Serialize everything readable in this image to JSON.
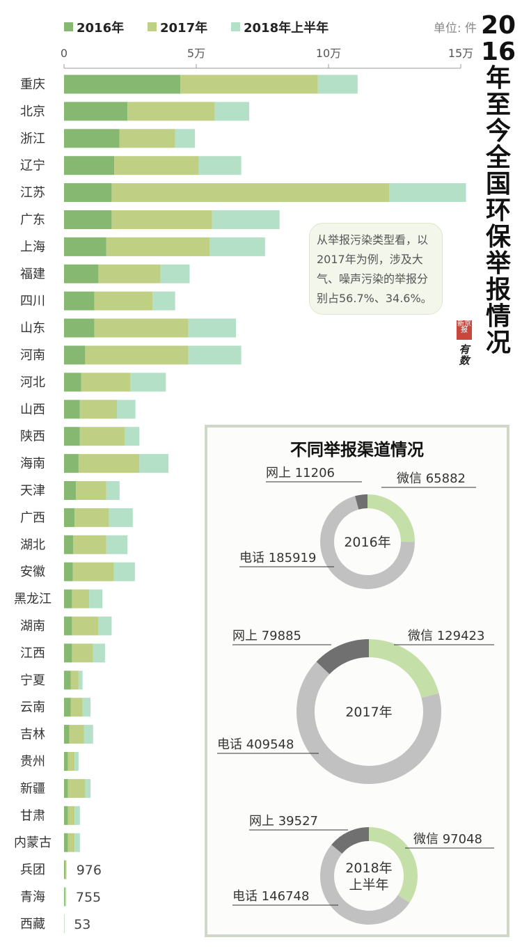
{
  "title": "2016年至今全国环保举报情况",
  "unit": "单位: 件",
  "note": "从举报污染类型看，以2017年为例，涉及大气、噪声污染的举报分别占56.7%、34.6%。",
  "logo_text": "新京报 有数",
  "colors": {
    "y2016": "#86b872",
    "y2017": "#bfd084",
    "y2018h1": "#b4e0c8",
    "wechat": "#c5dfa8",
    "phone": "#c1c1c1",
    "online": "#707070",
    "panel_border": "#cfd8c8"
  },
  "chart_data": [
    {
      "type": "bar",
      "orientation": "horizontal",
      "stacked": true,
      "xlim": [
        0,
        150000
      ],
      "xticks": [
        0,
        50000,
        100000,
        150000
      ],
      "xtick_labels": [
        "0",
        "5万",
        "10万",
        "15万"
      ],
      "legend_position": "top",
      "categories": [
        "重庆",
        "北京",
        "浙江",
        "辽宁",
        "江苏",
        "广东",
        "上海",
        "福建",
        "四川",
        "山东",
        "河南",
        "河北",
        "山西",
        "陕西",
        "海南",
        "天津",
        "广西",
        "湖北",
        "安徽",
        "黑龙江",
        "湖南",
        "江西",
        "宁夏",
        "云南",
        "吉林",
        "贵州",
        "新疆",
        "甘肃",
        "内蒙古",
        "兵团",
        "青海",
        "西藏"
      ],
      "series": [
        {
          "name": "2016年",
          "values": [
            44000,
            24000,
            21000,
            19000,
            18000,
            18000,
            16000,
            13000,
            11500,
            11500,
            8000,
            6500,
            6000,
            6000,
            5500,
            4500,
            4000,
            3500,
            3300,
            3000,
            3000,
            3000,
            2500,
            2500,
            2000,
            1500,
            1500,
            1500,
            1500,
            400,
            300,
            20
          ]
        },
        {
          "name": "2017年",
          "values": [
            52000,
            33000,
            21000,
            32000,
            105000,
            38000,
            39000,
            23500,
            22000,
            35500,
            39000,
            18500,
            14000,
            17000,
            23000,
            11500,
            13000,
            12500,
            15500,
            6500,
            10000,
            8000,
            3000,
            4500,
            5500,
            2500,
            6500,
            2500,
            2500,
            450,
            350,
            25
          ]
        },
        {
          "name": "2018年上半年",
          "values": [
            15000,
            13000,
            7500,
            16000,
            29000,
            25500,
            21000,
            11000,
            8500,
            18000,
            20000,
            13500,
            7000,
            5500,
            11000,
            5000,
            9000,
            8000,
            8000,
            5000,
            5000,
            4500,
            1500,
            3000,
            3500,
            1500,
            2000,
            2000,
            2000,
            126,
            105,
            8
          ]
        }
      ],
      "data_labels": [
        {
          "category": "兵团",
          "text": "976"
        },
        {
          "category": "青海",
          "text": "755"
        },
        {
          "category": "西藏",
          "text": "53"
        }
      ]
    },
    {
      "type": "pie",
      "title": "不同举报渠道情况",
      "donuts": [
        {
          "center_label": [
            "2016年"
          ],
          "slices": [
            {
              "name": "微信",
              "value": 65882,
              "label": "微信 65882"
            },
            {
              "name": "电话",
              "value": 185919,
              "label": "电话 185919"
            },
            {
              "name": "网上",
              "value": 11206,
              "label": "网上 11206"
            }
          ]
        },
        {
          "center_label": [
            "2017年"
          ],
          "slices": [
            {
              "name": "微信",
              "value": 129423,
              "label": "微信 129423"
            },
            {
              "name": "电话",
              "value": 409548,
              "label": "电话 409548"
            },
            {
              "name": "网上",
              "value": 79885,
              "label": "网上 79885"
            }
          ]
        },
        {
          "center_label": [
            "2018年",
            "上半年"
          ],
          "slices": [
            {
              "name": "微信",
              "value": 97048,
              "label": "微信 97048"
            },
            {
              "name": "电话",
              "value": 146748,
              "label": "电话 146748"
            },
            {
              "name": "网上",
              "value": 39527,
              "label": "网上 39527"
            }
          ]
        }
      ]
    }
  ]
}
